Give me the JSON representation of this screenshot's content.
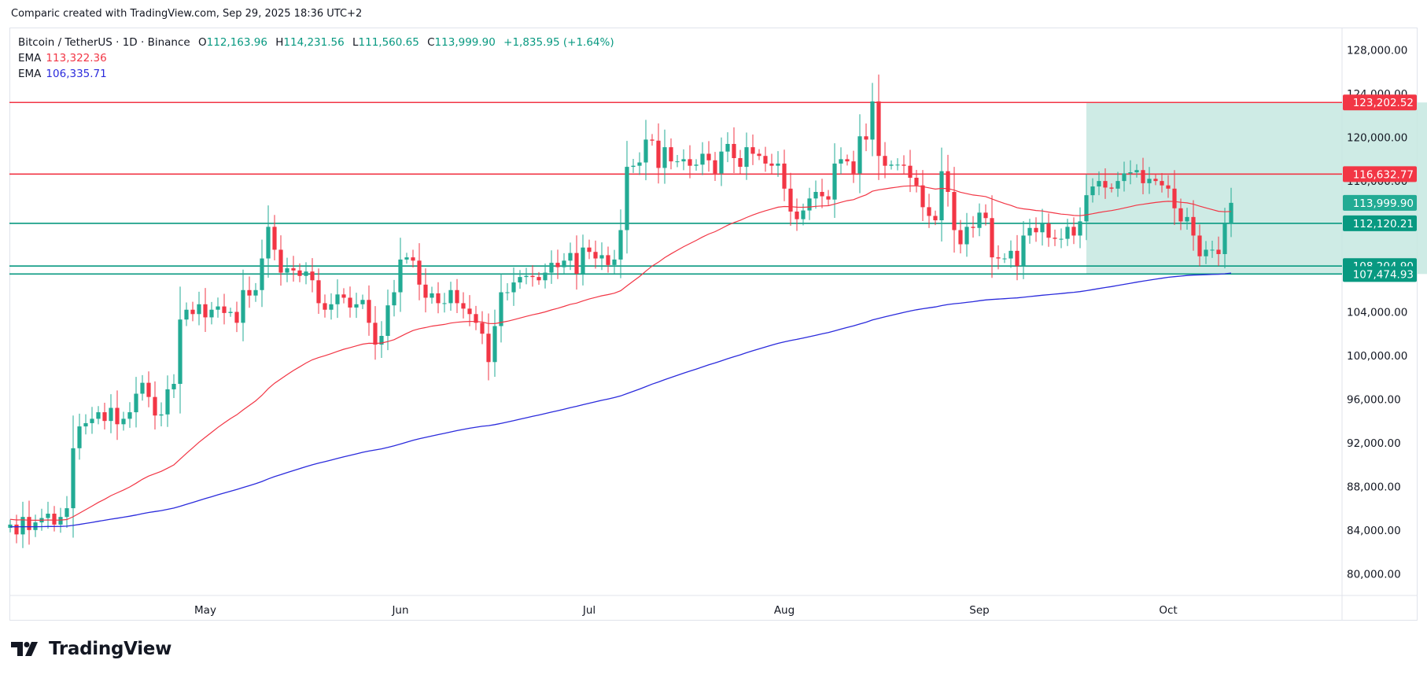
{
  "caption": "Comparic created with TradingView.com, Sep 29, 2025 18:36 UTC+2",
  "legend": {
    "symbol": "Bitcoin / TetherUS · 1D · Binance",
    "o_label": "O",
    "o_value": "112,163.96",
    "h_label": "H",
    "h_value": "114,231.56",
    "l_label": "L",
    "l_value": "111,560.65",
    "c_label": "C",
    "c_value": "113,999.90",
    "change": "+1,835.95 (+1.64%)",
    "ema1_label": "EMA",
    "ema1_value": "113,322.36",
    "ema2_label": "EMA",
    "ema2_value": "106,335.71"
  },
  "logo_text": "TradingView",
  "chart_data": {
    "type": "candlestick",
    "symbol": "Bitcoin / TetherUS",
    "interval": "1D",
    "exchange": "Binance",
    "ylim": [
      78000,
      130000
    ],
    "y_ticks": [
      "128,000.00",
      "124,000.00",
      "120,000.00",
      "116,000.00",
      "112,000.00",
      "108,000.00",
      "104,000.00",
      "100,000.00",
      "96,000.00",
      "92,000.00",
      "88,000.00",
      "84,000.00",
      "80,000.00"
    ],
    "x_ticks": [
      "May",
      "Jun",
      "Jul",
      "Aug",
      "Sep",
      "Oct"
    ],
    "colors": {
      "up": "#22ab94",
      "down": "#f23645",
      "ema_fast": "#f23645",
      "ema_slow": "#2b2bdc",
      "range_box": "#c6e8e1"
    },
    "last_price": {
      "label": "113,999.90",
      "value": 113999.9,
      "color": "#22ab94"
    },
    "levels": [
      {
        "label": "123,202.52",
        "value": 123202.52,
        "color": "#f23645"
      },
      {
        "label": "116,632.77",
        "value": 116632.77,
        "color": "#f23645"
      },
      {
        "label": "112,120.21",
        "value": 112120.21,
        "color": "#089981"
      },
      {
        "label": "108,204.90",
        "value": 108204.9,
        "color": "#089981"
      },
      {
        "label": "107,474.93",
        "value": 107474.93,
        "color": "#089981"
      }
    ],
    "range_box": {
      "x_start": 171,
      "x_end": 250,
      "top": 123202.52,
      "bottom": 107474.93
    },
    "month_starts": {
      "May": 31,
      "Jun": 62,
      "Jul": 92,
      "Aug": 123,
      "Sep": 154,
      "Oct": 184
    },
    "closes": [
      84500,
      83600,
      85200,
      84000,
      84700,
      85100,
      85500,
      84500,
      85200,
      86000,
      91500,
      93500,
      93800,
      94200,
      94800,
      94000,
      95200,
      93700,
      94200,
      94800,
      96500,
      97500,
      96200,
      94500,
      94600,
      96900,
      97400,
      103300,
      104200,
      103800,
      104700,
      103500,
      104200,
      104500,
      103900,
      104000,
      103000,
      106000,
      105500,
      106000,
      108900,
      111800,
      109700,
      107600,
      108000,
      107800,
      107300,
      107700,
      106900,
      104800,
      104200,
      104700,
      105600,
      105300,
      104400,
      104700,
      105100,
      103000,
      101000,
      101800,
      104600,
      105800,
      108800,
      109000,
      108700,
      106500,
      105300,
      105700,
      104800,
      104800,
      106000,
      104800,
      104300,
      103800,
      103000,
      102000,
      99400,
      102700,
      105800,
      105800,
      106700,
      107200,
      107300,
      107200,
      106900,
      107600,
      108500,
      108100,
      108700,
      109400,
      107500,
      109900,
      109500,
      108900,
      109200,
      108300,
      108800,
      111500,
      117300,
      117400,
      117700,
      119800,
      119700,
      117200,
      119100,
      117800,
      117800,
      118000,
      117400,
      117500,
      118500,
      117900,
      116700,
      118700,
      119400,
      118100,
      117300,
      119100,
      118500,
      118300,
      117600,
      117400,
      117600,
      115300,
      113200,
      112500,
      113300,
      114400,
      115000,
      114600,
      114300,
      117600,
      118000,
      117800,
      116700,
      120100,
      119800,
      123300,
      118300,
      117400,
      117500,
      117500,
      117400,
      116300,
      115600,
      113600,
      112800,
      112400,
      116900,
      115000,
      111500,
      110200,
      111800,
      111700,
      113100,
      112600,
      109000,
      108900,
      108900,
      109600,
      108200,
      111000,
      111700,
      111300,
      112100,
      110800,
      110700,
      110700,
      111800,
      111000,
      112300,
      114700,
      115500,
      116000,
      115400,
      115300,
      116000,
      116700,
      116800,
      117000,
      115800,
      116200,
      116000,
      115600,
      115300,
      113500,
      112300,
      112700,
      111000,
      109100,
      109700,
      109700,
      109300,
      112100,
      113999.9
    ],
    "ema_fast_start": 85000,
    "ema_slow_start": 84300,
    "ema_fast_last": 113322.36,
    "ema_slow_last": 106335.71
  }
}
